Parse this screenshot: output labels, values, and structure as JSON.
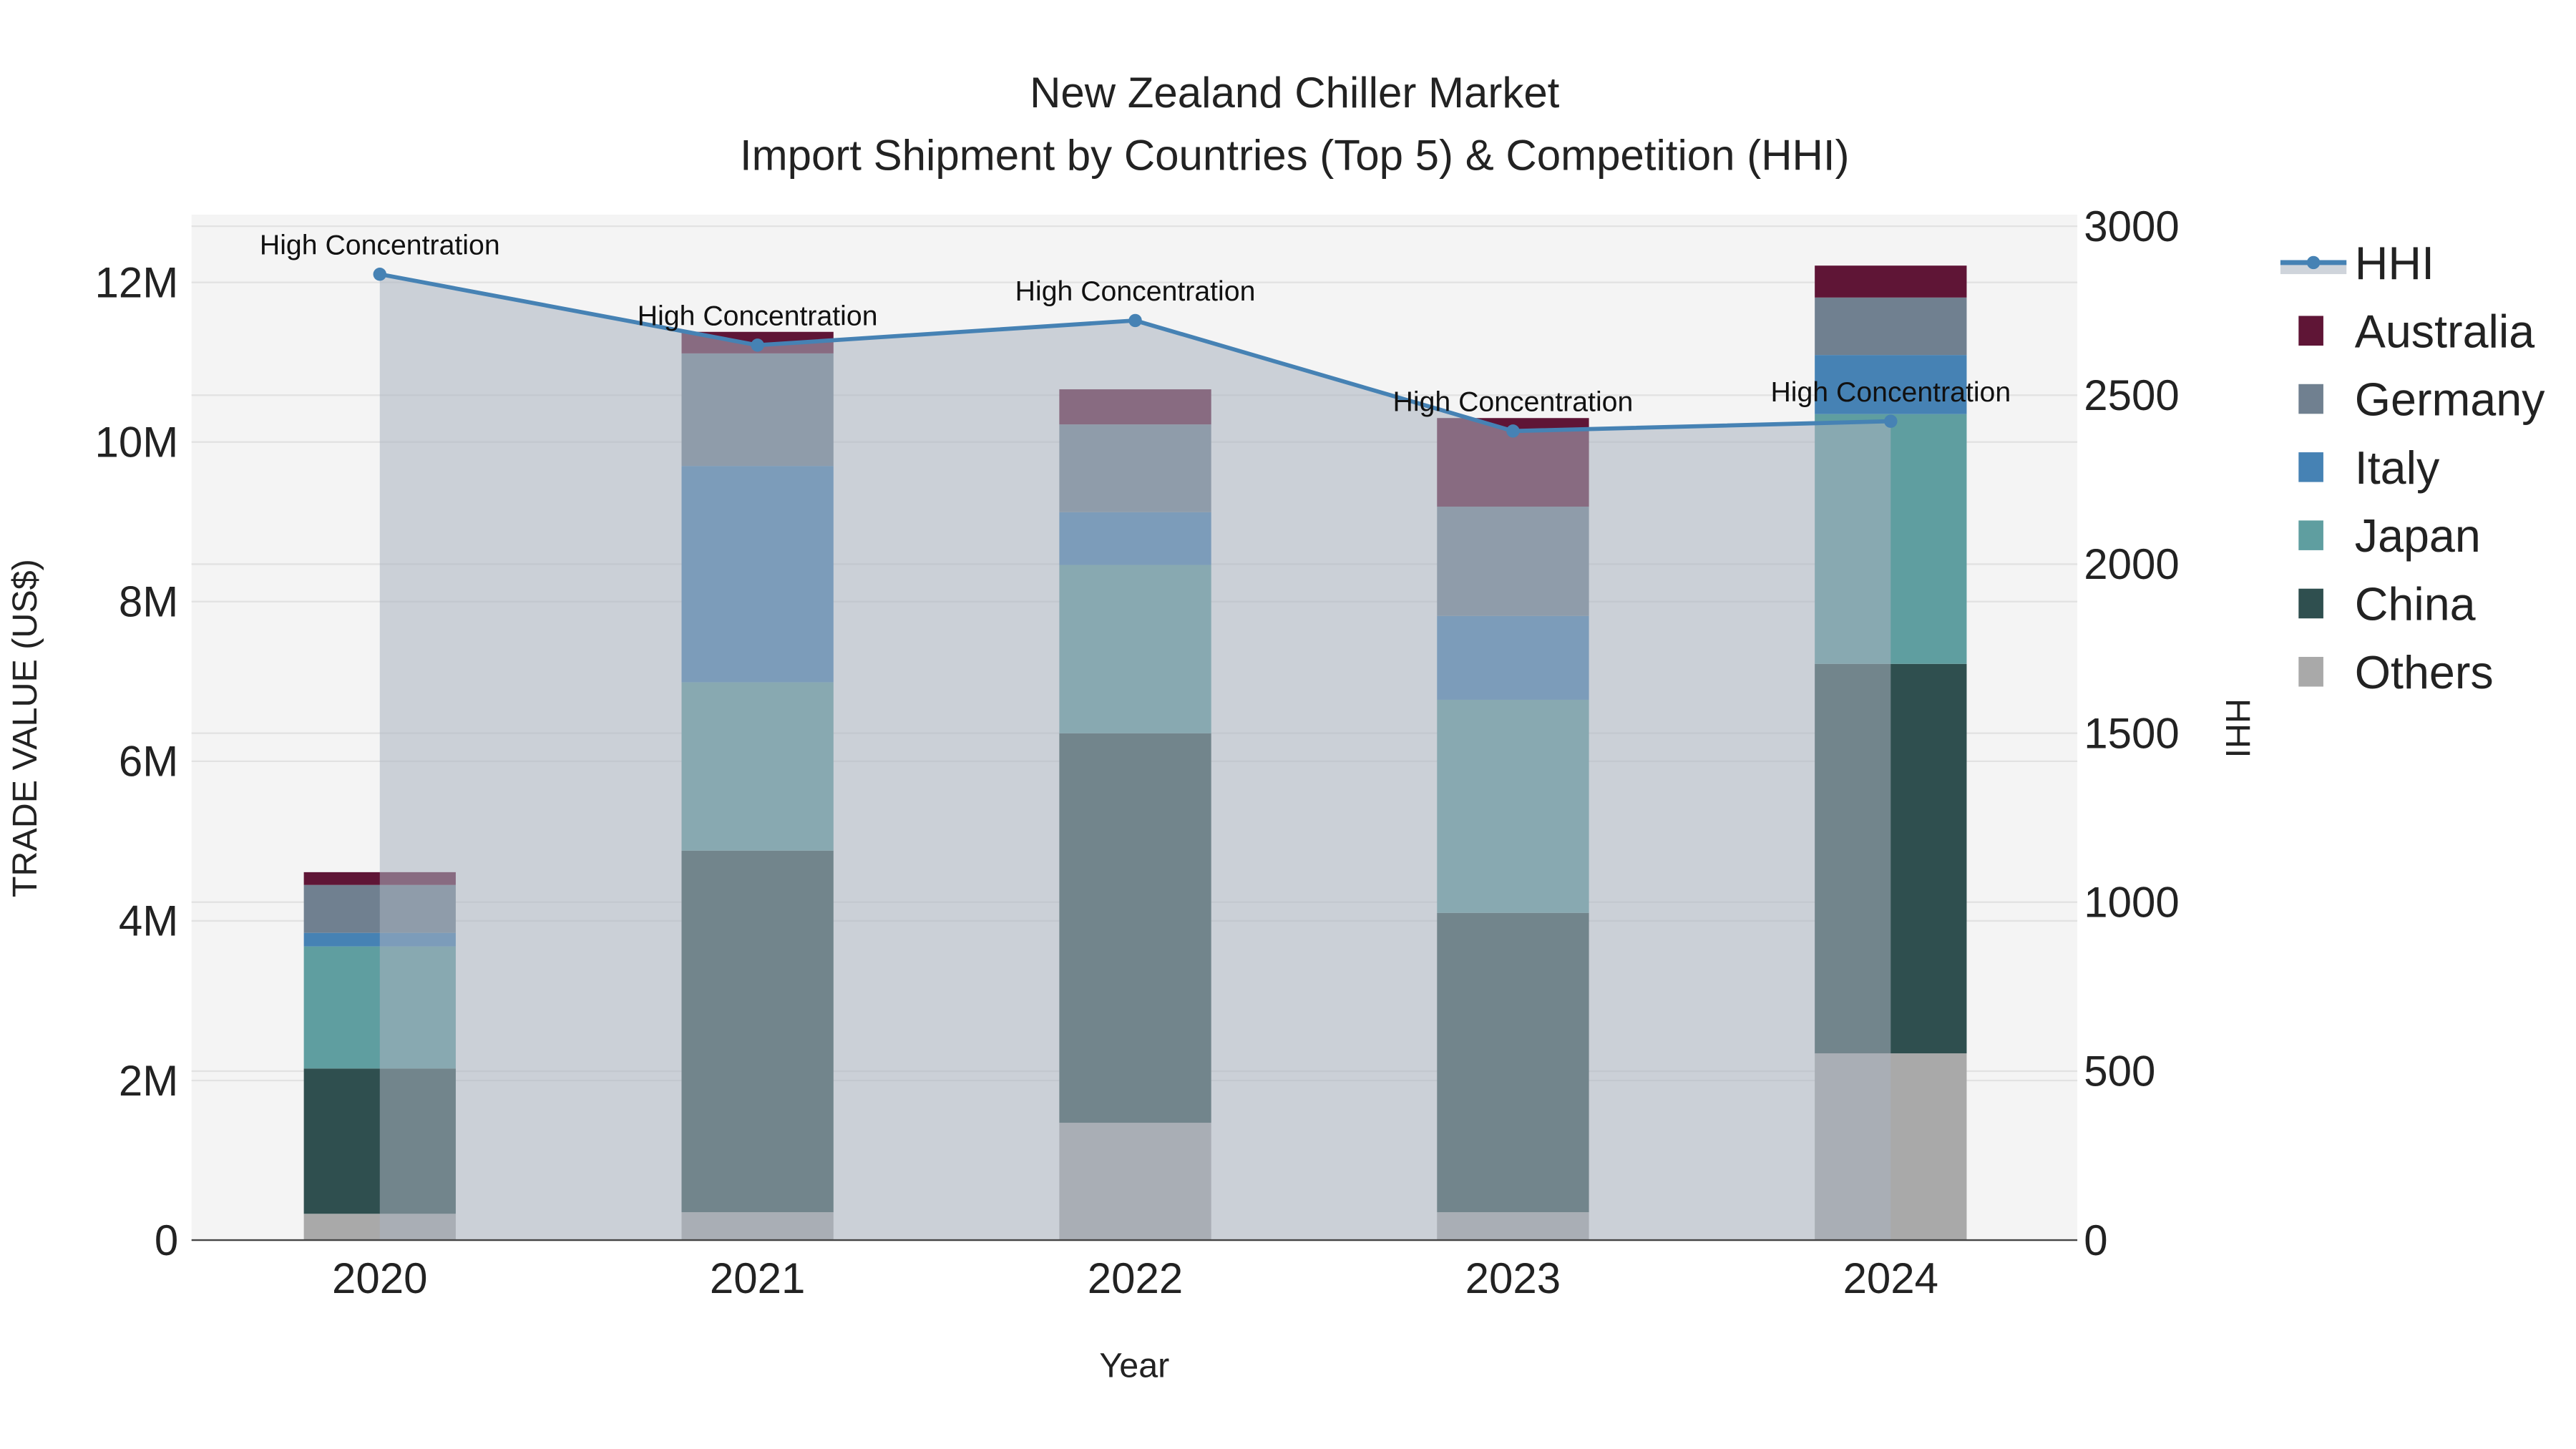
{
  "chart_data": {
    "type": "bar",
    "title": "New Zealand Chiller Market",
    "subtitle": "Import Shipment by Countries (Top 5) & Competition (HHI)",
    "xlabel": "Year",
    "ylabel": "TRADE VALUE (US$)",
    "y2label": "HHI",
    "categories": [
      "2020",
      "2021",
      "2022",
      "2023",
      "2024"
    ],
    "ylim": [
      0,
      12800000
    ],
    "y2lim": [
      0,
      3000
    ],
    "yticks": [
      0,
      2000000,
      4000000,
      6000000,
      8000000,
      10000000,
      12000000
    ],
    "ytick_labels": [
      "0",
      "2M",
      "4M",
      "6M",
      "8M",
      "10M",
      "12M"
    ],
    "y2ticks": [
      0,
      500,
      1000,
      1500,
      2000,
      2500,
      3000
    ],
    "y2tick_labels": [
      "0",
      "500",
      "1000",
      "1500",
      "2000",
      "2500",
      "3000"
    ],
    "stacked": true,
    "series": [
      {
        "name": "Others",
        "color": "#a9a9a9",
        "values": [
          330000,
          350000,
          1470000,
          350000,
          2340000
        ]
      },
      {
        "name": "China",
        "color": "#2f4f4f",
        "values": [
          1820000,
          4530000,
          4880000,
          3750000,
          4880000
        ]
      },
      {
        "name": "Japan",
        "color": "#5f9ea0",
        "values": [
          1530000,
          2110000,
          2110000,
          2670000,
          3130000
        ]
      },
      {
        "name": "Italy",
        "color": "#4682b4",
        "values": [
          170000,
          2710000,
          660000,
          1050000,
          740000
        ]
      },
      {
        "name": "Germany",
        "color": "#708090",
        "values": [
          600000,
          1410000,
          1100000,
          1370000,
          720000
        ]
      },
      {
        "name": "Australia",
        "color": "#5f1536",
        "values": [
          160000,
          270000,
          440000,
          1110000,
          400000
        ]
      }
    ],
    "line": {
      "name": "HHI",
      "color": "#4682b4",
      "values": [
        2858,
        2648,
        2721,
        2394,
        2423
      ],
      "axis": "y2"
    },
    "annotations": [
      "High Concentration",
      "High Concentration",
      "High Concentration",
      "High Concentration",
      "High Concentration"
    ],
    "legend": {
      "placement": "right",
      "entries": [
        "HHI",
        "Australia",
        "Germany",
        "Italy",
        "Japan",
        "China",
        "Others"
      ]
    },
    "grid": true
  }
}
